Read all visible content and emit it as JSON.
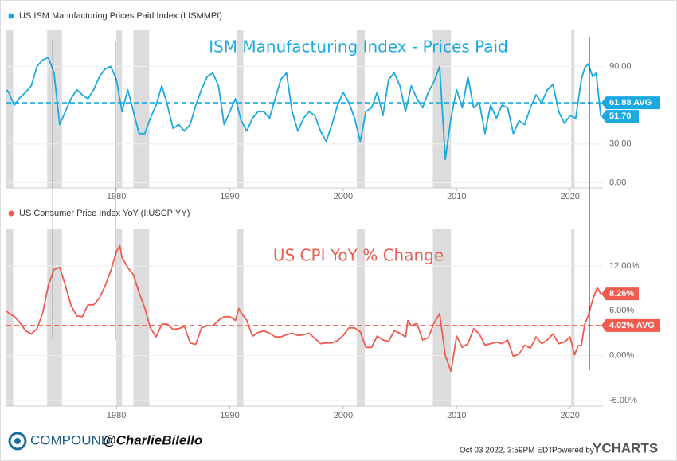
{
  "chart_data": [
    {
      "type": "line",
      "title": "ISM Manufacturing Index - Prices Paid",
      "x": [
        1970.3,
        1970.5,
        1971,
        1971.5,
        1972,
        1972.5,
        1973,
        1973.5,
        1974,
        1974.5,
        1975,
        1975.5,
        1976,
        1976.5,
        1977,
        1977.5,
        1978,
        1978.5,
        1979,
        1979.5,
        1980,
        1980.5,
        1981,
        1981.5,
        1982,
        1982.5,
        1983,
        1983.5,
        1984,
        1984.5,
        1985,
        1985.5,
        1986,
        1986.5,
        1987,
        1987.5,
        1988,
        1988.5,
        1989,
        1989.5,
        1990,
        1990.5,
        1991,
        1991.5,
        1992,
        1992.5,
        1993,
        1993.5,
        1994,
        1994.5,
        1995,
        1995.5,
        1996,
        1996.5,
        1997,
        1997.5,
        1998,
        1998.5,
        1999,
        1999.5,
        2000,
        2000.5,
        2001,
        2001.5,
        2002,
        2002.5,
        2003,
        2003.5,
        2004,
        2004.5,
        2005,
        2005.5,
        2006,
        2006.5,
        2007,
        2007.5,
        2008,
        2008.5,
        2009,
        2009.5,
        2010,
        2010.5,
        2011,
        2011.5,
        2012,
        2012.5,
        2013,
        2013.5,
        2014,
        2014.5,
        2015,
        2015.5,
        2016,
        2016.5,
        2017,
        2017.5,
        2018,
        2018.5,
        2019,
        2019.5,
        2020,
        2020.5,
        2021,
        2021.3,
        2021.6,
        2022,
        2022.3,
        2022.7
      ],
      "series": [
        {
          "name": "US ISM Manufacturing Prices Paid Index (I:ISMMPI)",
          "color": "#1ba9e1",
          "values": [
            72,
            70,
            60,
            66,
            70,
            75,
            90,
            95,
            97,
            85,
            45,
            55,
            65,
            72,
            68,
            65,
            72,
            82,
            88,
            90,
            80,
            55,
            72,
            55,
            38,
            38,
            50,
            60,
            75,
            60,
            42,
            45,
            40,
            45,
            60,
            72,
            82,
            85,
            75,
            45,
            55,
            65,
            48,
            40,
            50,
            55,
            55,
            50,
            65,
            80,
            85,
            55,
            40,
            50,
            55,
            52,
            40,
            32,
            45,
            60,
            70,
            62,
            50,
            32,
            55,
            58,
            70,
            52,
            80,
            85,
            75,
            55,
            75,
            65,
            58,
            70,
            78,
            90,
            18,
            50,
            72,
            58,
            82,
            58,
            62,
            38,
            60,
            50,
            60,
            58,
            38,
            48,
            45,
            58,
            68,
            62,
            72,
            76,
            55,
            46,
            52,
            50,
            80,
            89,
            92,
            82,
            85,
            51.7
          ]
        }
      ],
      "last_label": "51.70",
      "average": {
        "value": 61.88,
        "label": "61.88 AVG"
      },
      "xlim": [
        1970.3,
        2022.9
      ],
      "xticks": [
        1980,
        1990,
        2000,
        2010,
        2020
      ],
      "ylim": [
        -4,
        118
      ],
      "yticks": [
        {
          "value": 0,
          "label": "0.00"
        },
        {
          "value": 30,
          "label": "30.00"
        },
        {
          "value": 90,
          "label": "90.00"
        }
      ]
    },
    {
      "type": "line",
      "title": "US CPI YoY % Change",
      "x": [
        1970.3,
        1970.5,
        1971,
        1971.5,
        1972,
        1972.5,
        1973,
        1973.5,
        1974,
        1974.5,
        1975,
        1975.5,
        1976,
        1976.5,
        1977,
        1977.5,
        1978,
        1978.5,
        1979,
        1979.5,
        1980,
        1980.3,
        1980.5,
        1981,
        1981.5,
        1982,
        1982.5,
        1983,
        1983.5,
        1984,
        1984.5,
        1985,
        1985.5,
        1986,
        1986.5,
        1987,
        1987.5,
        1988,
        1988.5,
        1989,
        1989.5,
        1990,
        1990.5,
        1990.8,
        1991,
        1991.5,
        1992,
        1992.5,
        1993,
        1993.5,
        1994,
        1994.5,
        1995,
        1995.5,
        1996,
        1996.5,
        1997,
        1997.5,
        1998,
        1998.5,
        1999,
        1999.5,
        2000,
        2000.5,
        2001,
        2001.5,
        2002,
        2002.5,
        2003,
        2003.5,
        2004,
        2004.5,
        2005,
        2005.5,
        2005.7,
        2006,
        2006.5,
        2007,
        2007.5,
        2008,
        2008.5,
        2009,
        2009.5,
        2010,
        2010.5,
        2011,
        2011.5,
        2012,
        2012.5,
        2013,
        2013.5,
        2014,
        2014.5,
        2015,
        2015.5,
        2016,
        2016.5,
        2017,
        2017.5,
        2018,
        2018.5,
        2019,
        2019.5,
        2020,
        2020.4,
        2020.7,
        2021,
        2021.3,
        2021.6,
        2022,
        2022.4,
        2022.7
      ],
      "series": [
        {
          "name": "US Consumer Price Index YoY (I:USCPIYY)",
          "color": "#f05b4f",
          "values": [
            6,
            5.7,
            5.2,
            4.4,
            3.3,
            2.9,
            3.6,
            5.7,
            9.4,
            11.5,
            11.8,
            9.4,
            6.7,
            5.3,
            5.2,
            6.8,
            6.8,
            7.7,
            9.3,
            11.3,
            13.9,
            14.7,
            13.1,
            11.8,
            10.8,
            8.4,
            6.4,
            3.7,
            2.5,
            4.2,
            4.2,
            3.5,
            3.6,
            3.9,
            1.7,
            1.5,
            3.7,
            4.0,
            4.0,
            4.7,
            5.2,
            5.2,
            4.7,
            6.3,
            5.7,
            4.7,
            2.6,
            3.1,
            3.3,
            3.0,
            2.5,
            2.5,
            2.8,
            3.0,
            2.7,
            2.8,
            3.0,
            2.3,
            1.6,
            1.7,
            1.7,
            2.0,
            2.7,
            3.7,
            3.7,
            3.2,
            1.1,
            1.1,
            2.6,
            2.1,
            1.9,
            3.3,
            3.0,
            2.5,
            4.7,
            4.0,
            4.3,
            2.1,
            2.4,
            4.3,
            5.6,
            0,
            -2.1,
            2.6,
            1.1,
            1.6,
            3.6,
            2.9,
            1.4,
            1.6,
            1.8,
            1.6,
            2.1,
            -0.1,
            0.2,
            1.4,
            1.0,
            2.5,
            1.6,
            2.1,
            2.9,
            1.6,
            1.8,
            2.5,
            0.1,
            1.3,
            1.4,
            4.2,
            5.3,
            7.5,
            9.1,
            8.26
          ]
        }
      ],
      "last_label": "8.26%",
      "average": {
        "value": 4.02,
        "label": "4.02% AVG"
      },
      "xlim": [
        1970.3,
        2022.9
      ],
      "xticks": [
        1980,
        1990,
        2000,
        2010,
        2020
      ],
      "ylim": [
        -6.75,
        17
      ],
      "yticks": [
        {
          "value": -6,
          "label": "-6.00%"
        },
        {
          "value": 0,
          "label": "0.00%"
        },
        {
          "value": 6,
          "label": "6.00%"
        },
        {
          "value": 12,
          "label": "12.00%"
        }
      ]
    }
  ],
  "recessions": [
    [
      1970.3,
      1970.9
    ],
    [
      1973.9,
      1975.2
    ],
    [
      1980.0,
      1980.5
    ],
    [
      1981.5,
      1982.9
    ],
    [
      1990.6,
      1991.2
    ],
    [
      2001.2,
      2001.9
    ],
    [
      2007.9,
      2009.5
    ],
    [
      2020.1,
      2020.4
    ]
  ],
  "annotation_lines": [
    1974.4,
    1979.9,
    2021.7
  ],
  "footer": {
    "brand": "COMPOUND",
    "handle": "@CharlieBilello",
    "timestamp": "Oct 03 2022, 3:59PM EDT.",
    "powered": "Powered by",
    "provider": "YCHARTS"
  }
}
